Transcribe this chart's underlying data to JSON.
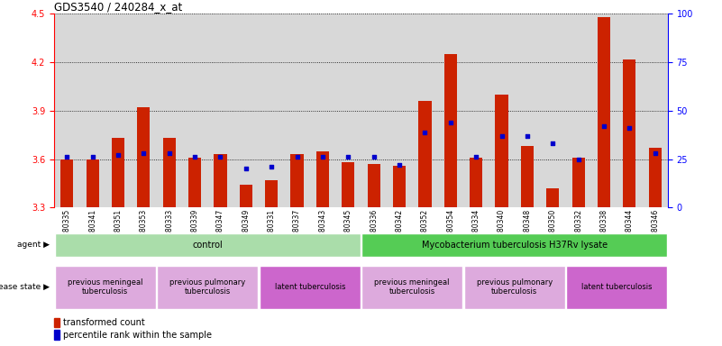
{
  "title": "GDS3540 / 240284_x_at",
  "samples": [
    "GSM280335",
    "GSM280341",
    "GSM280351",
    "GSM280353",
    "GSM280333",
    "GSM280339",
    "GSM280347",
    "GSM280349",
    "GSM280331",
    "GSM280337",
    "GSM280343",
    "GSM280345",
    "GSM280336",
    "GSM280342",
    "GSM280352",
    "GSM280354",
    "GSM280334",
    "GSM280340",
    "GSM280348",
    "GSM280350",
    "GSM280332",
    "GSM280338",
    "GSM280344",
    "GSM280346"
  ],
  "transformed_count": [
    3.6,
    3.6,
    3.73,
    3.92,
    3.73,
    3.61,
    3.63,
    3.44,
    3.47,
    3.63,
    3.65,
    3.58,
    3.57,
    3.56,
    3.96,
    4.25,
    3.61,
    4.0,
    3.68,
    3.42,
    3.61,
    4.48,
    4.22,
    3.67
  ],
  "percentile_rank": [
    26,
    26,
    27,
    28,
    28,
    26,
    26,
    20,
    21,
    26,
    26,
    26,
    26,
    22,
    39,
    44,
    26,
    37,
    37,
    33,
    25,
    42,
    41,
    28
  ],
  "ylim_left": [
    3.3,
    4.5
  ],
  "ylim_right": [
    0,
    100
  ],
  "yticks_left": [
    3.3,
    3.6,
    3.9,
    4.2,
    4.5
  ],
  "yticks_right": [
    0,
    25,
    50,
    75,
    100
  ],
  "bar_color": "#cc2200",
  "dot_color": "#0000cc",
  "agent_groups": [
    {
      "label": "control",
      "start": 0,
      "end": 11,
      "color": "#aaddaa"
    },
    {
      "label": "Mycobacterium tuberculosis H37Rv lysate",
      "start": 12,
      "end": 23,
      "color": "#55cc55"
    }
  ],
  "disease_groups": [
    {
      "label": "previous meningeal\ntuberculosis",
      "start": 0,
      "end": 3,
      "color": "#ddaadd"
    },
    {
      "label": "previous pulmonary\ntuberculosis",
      "start": 4,
      "end": 7,
      "color": "#ddaadd"
    },
    {
      "label": "latent tuberculosis",
      "start": 8,
      "end": 11,
      "color": "#cc66cc"
    },
    {
      "label": "previous meningeal\ntuberculosis",
      "start": 12,
      "end": 15,
      "color": "#ddaadd"
    },
    {
      "label": "previous pulmonary\ntuberculosis",
      "start": 16,
      "end": 19,
      "color": "#ddaadd"
    },
    {
      "label": "latent tuberculosis",
      "start": 20,
      "end": 23,
      "color": "#cc66cc"
    }
  ]
}
